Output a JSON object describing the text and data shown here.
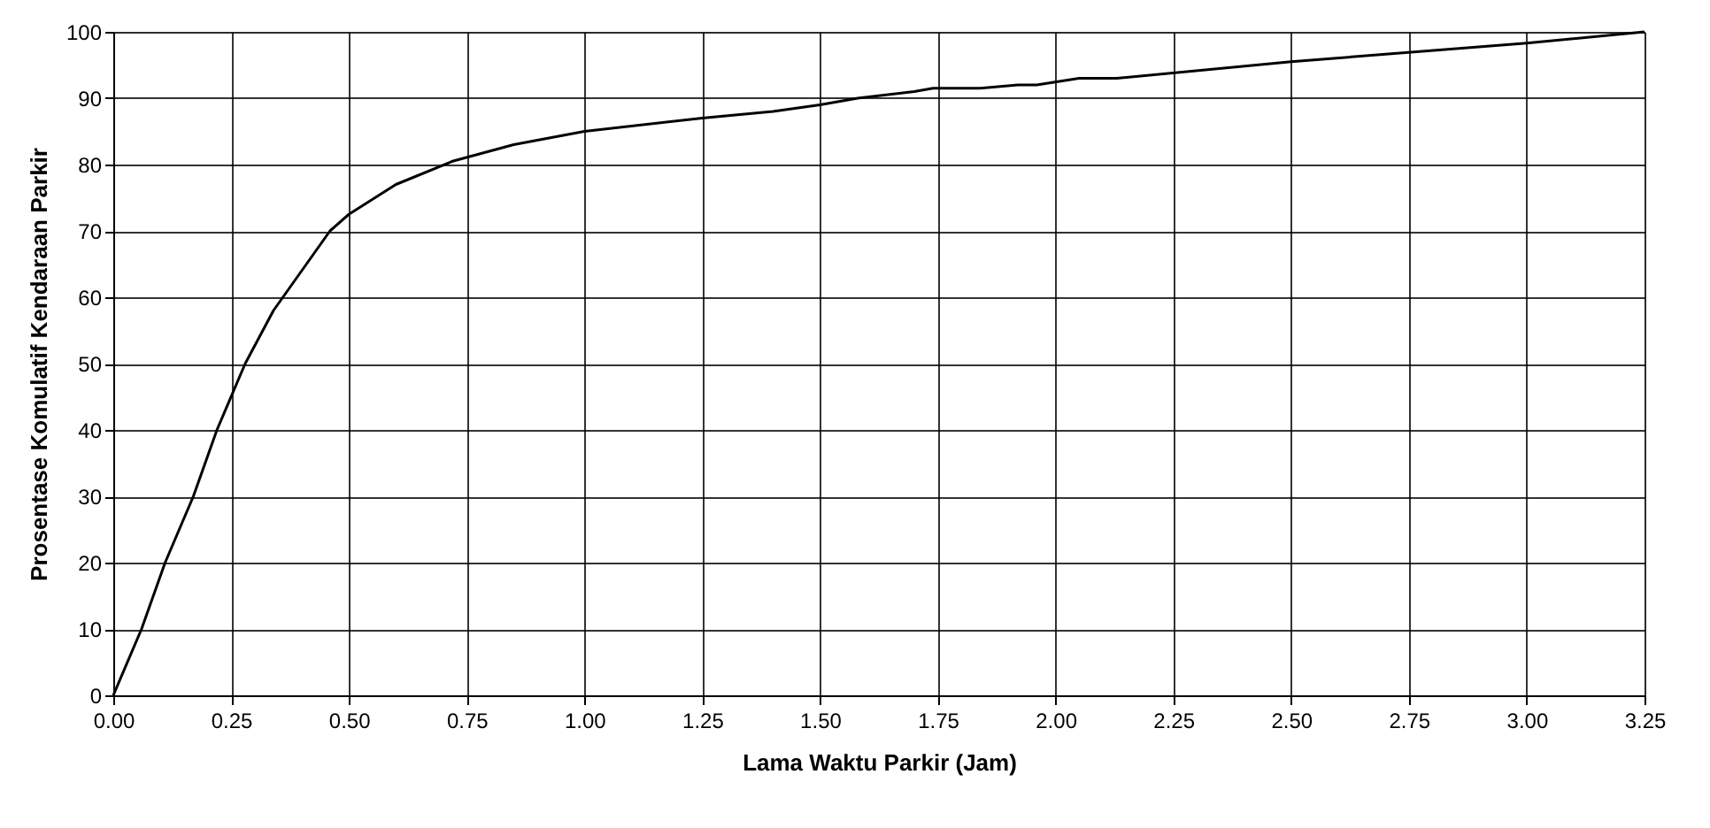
{
  "chart_data": {
    "type": "line",
    "xlabel": "Lama Waktu Parkir (Jam)",
    "ylabel": "Prosentase Komulatif Kendaraan Parkir",
    "x": [
      0,
      0.06,
      0.11,
      0.17,
      0.22,
      0.28,
      0.34,
      0.4,
      0.46,
      0.5,
      0.6,
      0.72,
      0.85,
      1.0,
      1.25,
      1.4,
      1.5,
      1.58,
      1.7,
      1.74,
      1.84,
      1.92,
      1.96,
      2.05,
      2.13,
      2.5,
      3.0,
      3.25
    ],
    "series": [
      {
        "color": "#000000",
        "values": [
          0,
          10,
          20,
          30,
          40,
          50,
          58,
          64,
          70,
          72.5,
          77,
          80.5,
          83,
          85,
          87,
          88,
          89,
          90,
          91,
          91.5,
          91.5,
          92,
          92,
          93,
          93,
          95.5,
          98.3,
          100
        ]
      }
    ],
    "xlim": [
      0,
      3.25
    ],
    "xticks": [
      {
        "value": 0,
        "label": "0.00"
      },
      {
        "value": 0.25,
        "label": "0.25"
      },
      {
        "value": 0.5,
        "label": "0.50"
      },
      {
        "value": 0.75,
        "label": "0.75"
      },
      {
        "value": 1,
        "label": "1.00"
      },
      {
        "value": 1.25,
        "label": "1.25"
      },
      {
        "value": 1.5,
        "label": "1.50"
      },
      {
        "value": 1.75,
        "label": "1.75"
      },
      {
        "value": 2,
        "label": "2.00"
      },
      {
        "value": 2.25,
        "label": "2.25"
      },
      {
        "value": 2.5,
        "label": "2.50"
      },
      {
        "value": 2.75,
        "label": "2.75"
      },
      {
        "value": 3,
        "label": "3.00"
      },
      {
        "value": 3.25,
        "label": "3.25"
      }
    ],
    "ylim": [
      0,
      100
    ],
    "yticks": [
      0,
      10,
      20,
      30,
      40,
      50,
      60,
      70,
      80,
      90,
      100
    ],
    "grid": true,
    "marker": "none",
    "line_style": "solid"
  }
}
